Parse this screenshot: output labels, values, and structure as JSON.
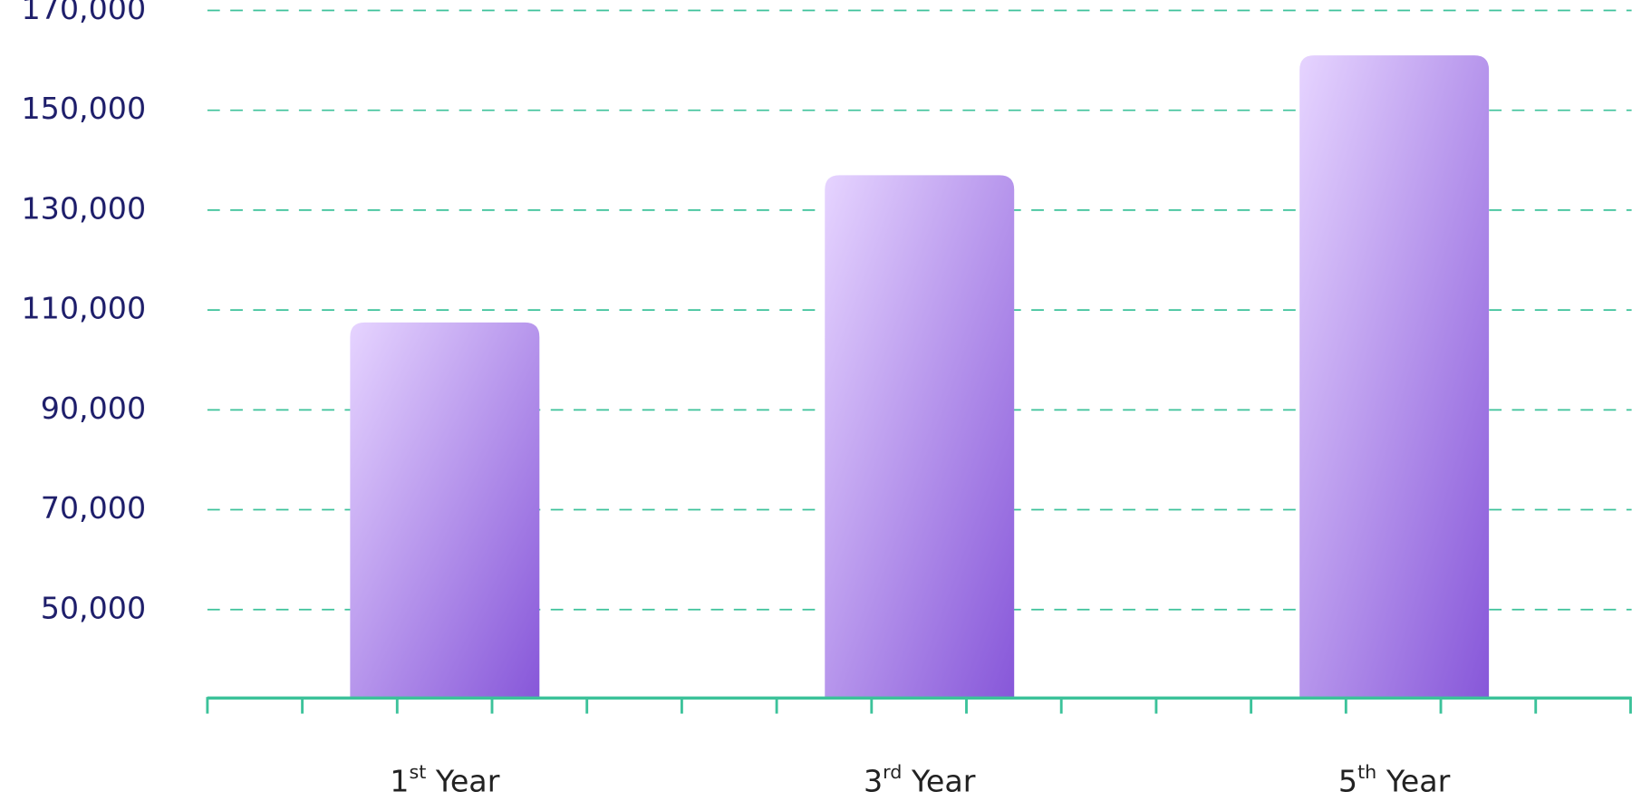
{
  "chart_data": {
    "type": "bar",
    "categories": [
      "1st Year",
      "3rd Year",
      "5th Year"
    ],
    "values": [
      107500,
      137000,
      161000
    ],
    "color": [
      "#e6d4ff",
      "#8757d9"
    ],
    "ylim": [
      32500,
      170000
    ],
    "yticks": [
      {
        "value": 50000,
        "label": "50,000"
      },
      {
        "value": 70000,
        "label": "70,000"
      },
      {
        "value": 90000,
        "label": "90,000"
      },
      {
        "value": 110000,
        "label": "110,000"
      },
      {
        "value": 130000,
        "label": "130,000"
      },
      {
        "value": 150000,
        "label": "150,000"
      },
      {
        "value": 170000,
        "label": "170,000"
      }
    ],
    "grid": true
  }
}
